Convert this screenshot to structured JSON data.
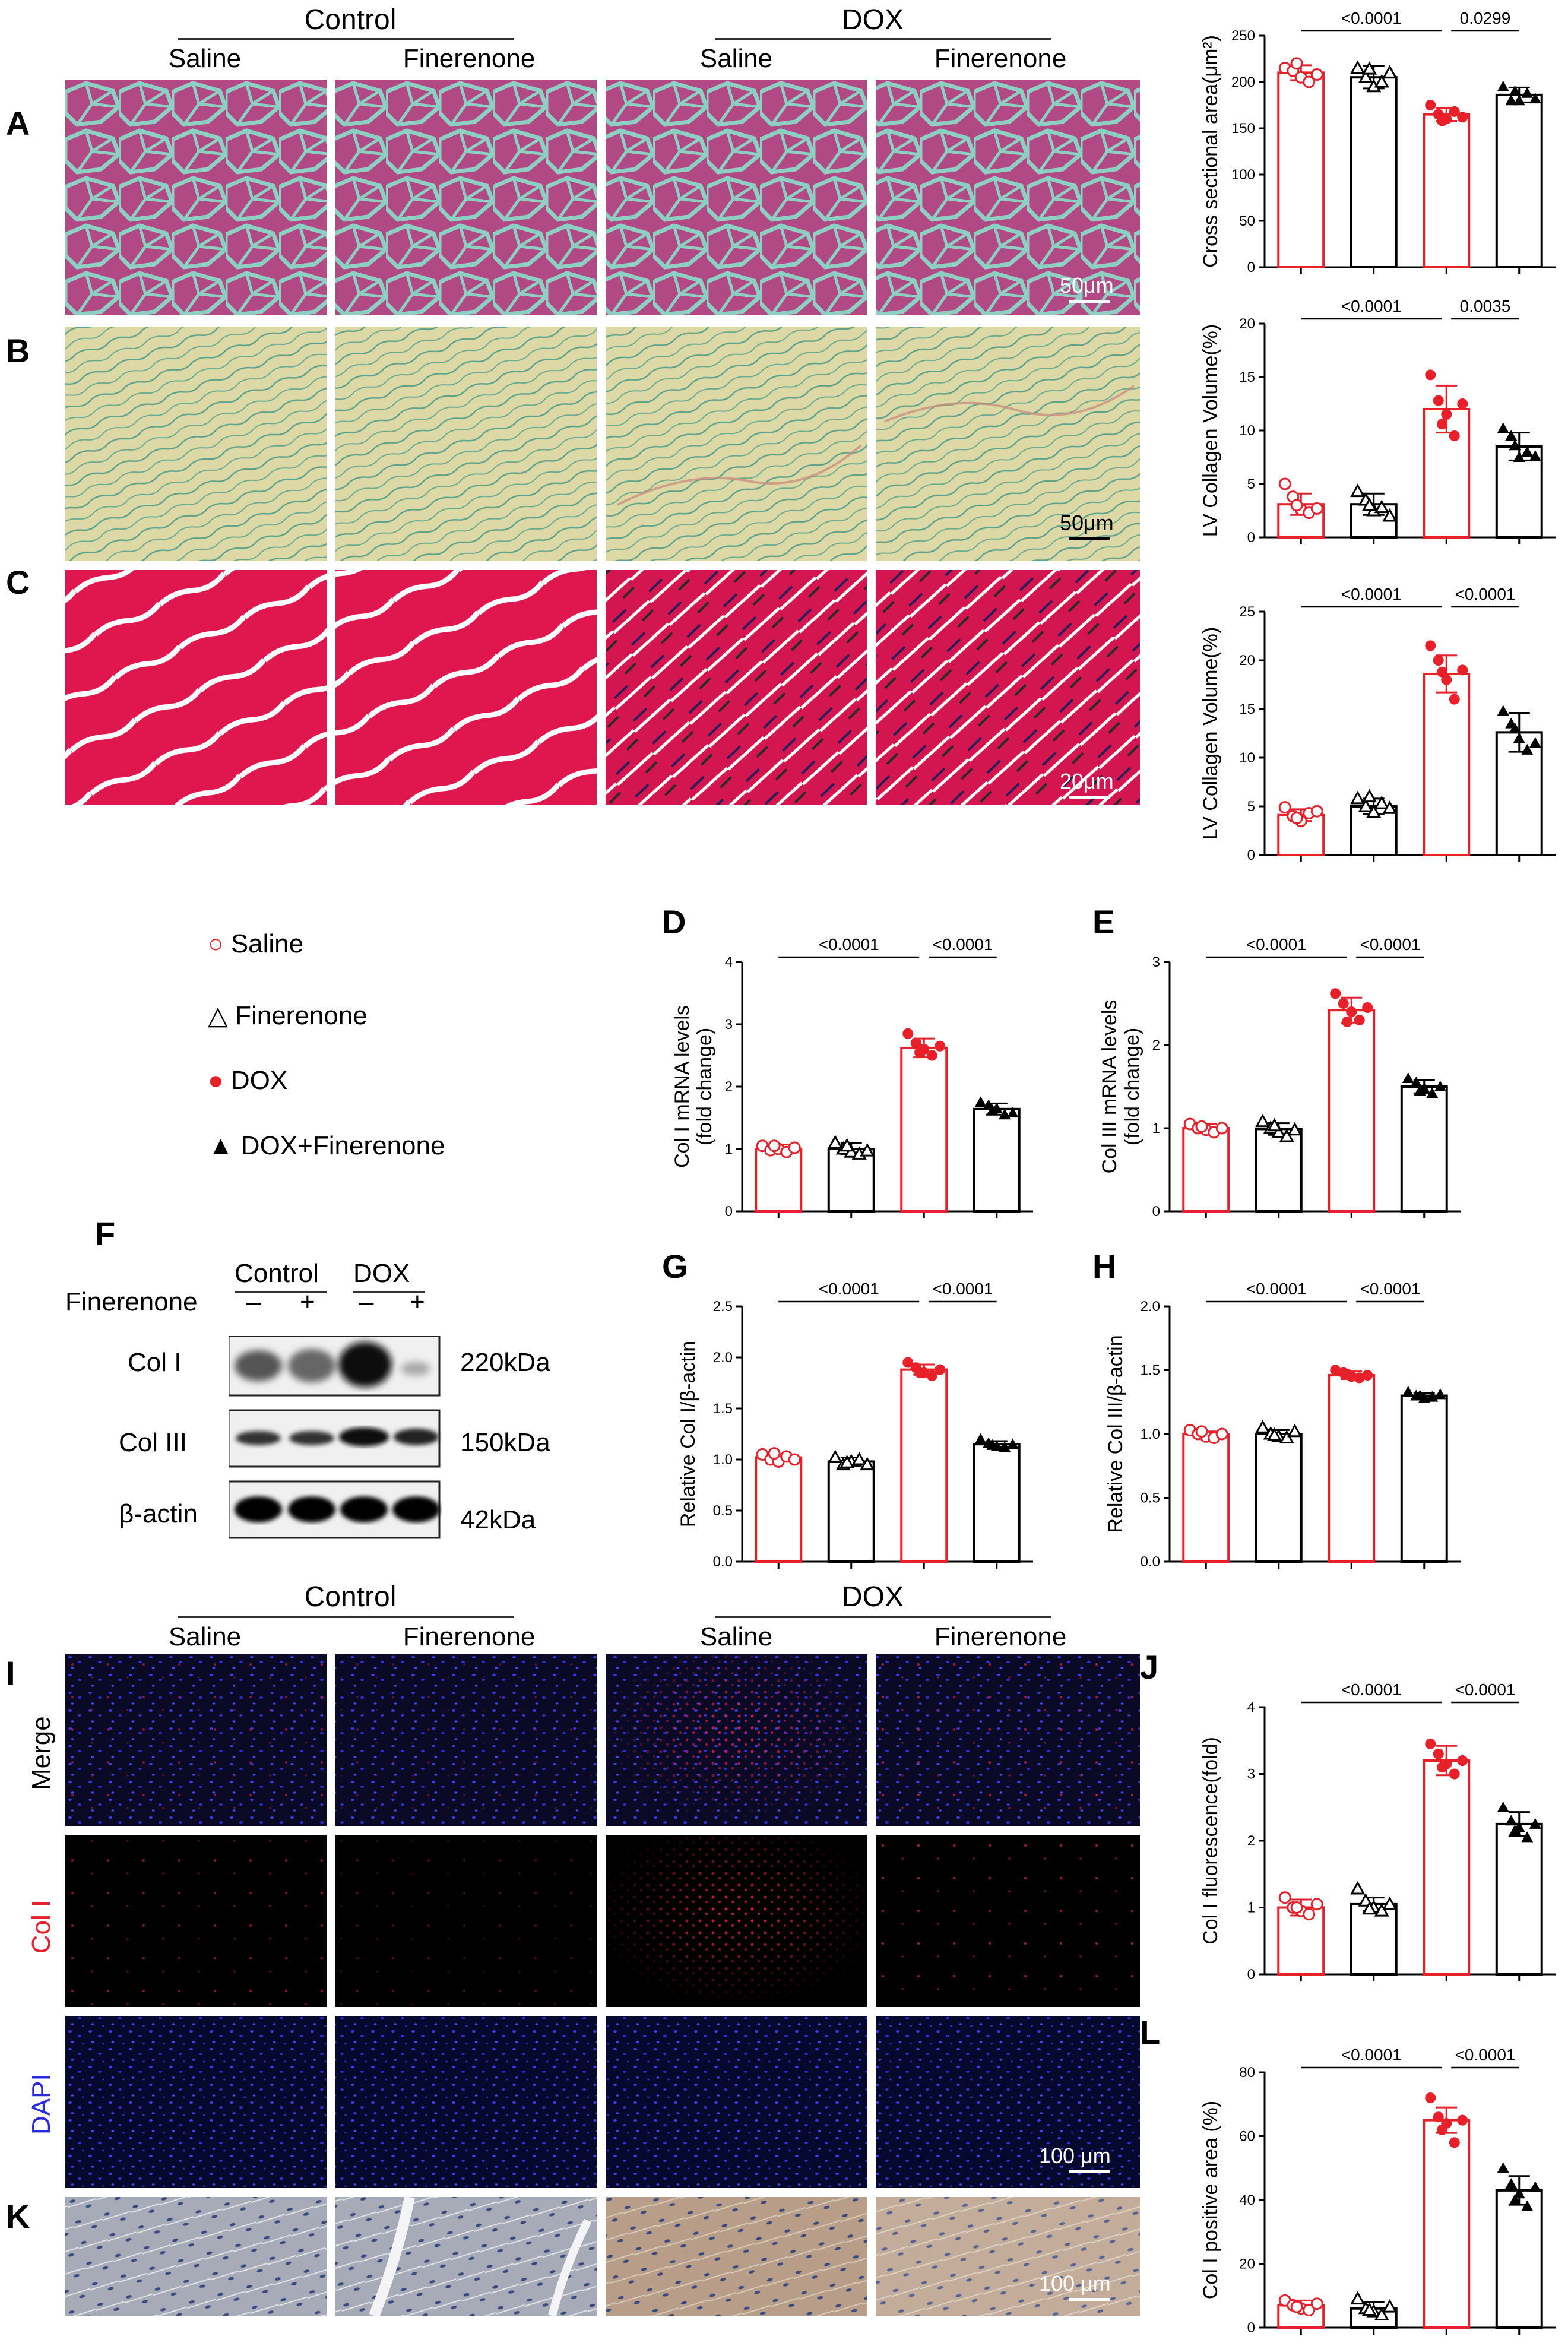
{
  "headers": {
    "control": "Control",
    "dox": "DOX",
    "saline": "Saline",
    "finerenone": "Finerenone"
  },
  "panels": {
    "A": "A",
    "B": "B",
    "C": "C",
    "D": "D",
    "E": "E",
    "F": "F",
    "G": "G",
    "H": "H",
    "I": "I",
    "J": "J",
    "K": "K",
    "L": "L"
  },
  "scalebars": {
    "A": "50μm",
    "B": "50μm",
    "C": "20μm",
    "IF": "100 μm",
    "K": "100 μm"
  },
  "legend": [
    {
      "marker": "○",
      "label": "Saline",
      "color": "#e8202a"
    },
    {
      "marker": "△",
      "label": "Finerenone",
      "color": "#000000"
    },
    {
      "marker": "●",
      "label": "DOX",
      "color": "#e8202a"
    },
    {
      "marker": "▲",
      "label": "DOX+Finerenone",
      "color": "#000000"
    }
  ],
  "western": {
    "finerenone_label": "Finerenone",
    "control": "Control",
    "dox": "DOX",
    "signs": [
      "–",
      "+",
      "–",
      "+"
    ],
    "rows": [
      {
        "name": "Col I",
        "size": "220kDa"
      },
      {
        "name": "Col III",
        "size": "150kDa"
      },
      {
        "name": "β-actin",
        "size": "42kDa"
      }
    ]
  },
  "if_rows": [
    "Merge",
    "Col I",
    "DAPI"
  ],
  "colors": {
    "red": "#e8202a",
    "black": "#000000",
    "merge_bg": "#0a0a26",
    "col_bg": "#000000",
    "dapi_bg": "#07082e",
    "he_pink": "#b04b86",
    "sr_bg": "#dcd9a6",
    "red_stain": "#e0164f",
    "ihc_bg": "#9fa5b1"
  },
  "chart_data": [
    {
      "panel": "A",
      "type": "bar",
      "ylabel": "Cross sectional area(μm²)",
      "ylim": [
        0,
        250
      ],
      "yticks": [
        0,
        50,
        100,
        150,
        200,
        250
      ],
      "values": [
        210,
        205,
        165,
        186
      ],
      "errors": [
        8,
        12,
        7,
        8
      ],
      "points": [
        [
          215,
          212,
          205,
          200,
          208,
          220
        ],
        [
          215,
          205,
          195,
          200,
          210,
          214
        ],
        [
          175,
          165,
          160,
          168,
          162,
          158
        ],
        [
          195,
          180,
          180,
          188,
          182,
          190
        ]
      ],
      "comparisons": [
        {
          "from": 0,
          "to": 2,
          "label": "<0.0001"
        },
        {
          "from": 2,
          "to": 3,
          "label": "0.0299"
        }
      ]
    },
    {
      "panel": "B",
      "type": "bar",
      "ylabel": "LV Collagen Volume(%)",
      "ylim": [
        0,
        20
      ],
      "yticks": [
        0,
        5,
        10,
        15,
        20
      ],
      "values": [
        3.1,
        3.1,
        12.0,
        8.5
      ],
      "errors": [
        1.0,
        1.0,
        2.2,
        1.3
      ],
      "points": [
        [
          5.0,
          3.8,
          2.6,
          2.3,
          2.7,
          3.0
        ],
        [
          4.3,
          3.5,
          2.5,
          2.8,
          2.0,
          3.0
        ],
        [
          15.2,
          12.8,
          11.5,
          9.5,
          12.5,
          10.6
        ],
        [
          10.2,
          9.5,
          7.5,
          8.0,
          7.6,
          8.6
        ]
      ],
      "comparisons": [
        {
          "from": 0,
          "to": 2,
          "label": "<0.0001"
        },
        {
          "from": 2,
          "to": 3,
          "label": "0.0035"
        }
      ]
    },
    {
      "panel": "C",
      "type": "bar",
      "ylabel": "LV Collagen Volume(%)",
      "ylim": [
        0,
        25
      ],
      "yticks": [
        0,
        5,
        10,
        15,
        20,
        25
      ],
      "values": [
        4.1,
        5.0,
        18.6,
        12.6
      ],
      "errors": [
        0.6,
        0.8,
        1.9,
        2.0
      ],
      "points": [
        [
          4.9,
          4.0,
          3.5,
          4.3,
          4.5,
          3.8
        ],
        [
          5.8,
          5.0,
          4.4,
          5.3,
          4.8,
          6.0
        ],
        [
          21.5,
          20.0,
          18.0,
          16.0,
          19.0,
          18.8
        ],
        [
          14.8,
          13.5,
          12.0,
          10.8,
          11.5,
          13.0
        ]
      ],
      "comparisons": [
        {
          "from": 0,
          "to": 2,
          "label": "<0.0001"
        },
        {
          "from": 2,
          "to": 3,
          "label": "<0.0001"
        }
      ]
    },
    {
      "panel": "D",
      "type": "bar",
      "ylabel": "Col I mRNA levels\n(fold change)",
      "ylim": [
        0,
        4
      ],
      "yticks": [
        0,
        1,
        2,
        3,
        4
      ],
      "values": [
        1.0,
        1.0,
        2.62,
        1.64
      ],
      "errors": [
        0.07,
        0.09,
        0.15,
        0.09
      ],
      "points": [
        [
          1.05,
          0.98,
          1.0,
          0.95,
          1.02,
          1.05
        ],
        [
          1.1,
          1.0,
          0.95,
          0.92,
          0.97,
          1.05
        ],
        [
          2.85,
          2.7,
          2.6,
          2.5,
          2.65,
          2.55
        ],
        [
          1.75,
          1.7,
          1.65,
          1.55,
          1.58,
          1.62
        ]
      ],
      "comparisons": [
        {
          "from": 0,
          "to": 2,
          "label": "<0.0001"
        },
        {
          "from": 2,
          "to": 3,
          "label": "<0.0001"
        }
      ]
    },
    {
      "panel": "E",
      "type": "bar",
      "ylabel": "Col III mRNA levels\n(fold change)",
      "ylim": [
        0,
        3
      ],
      "yticks": [
        0,
        1,
        2,
        3
      ],
      "values": [
        1.0,
        0.99,
        2.42,
        1.5
      ],
      "errors": [
        0.05,
        0.07,
        0.15,
        0.08
      ],
      "points": [
        [
          1.05,
          1.0,
          0.98,
          0.95,
          1.0,
          1.02
        ],
        [
          1.08,
          1.0,
          0.95,
          0.9,
          0.98,
          1.03
        ],
        [
          2.62,
          2.5,
          2.4,
          2.3,
          2.45,
          2.28
        ],
        [
          1.6,
          1.55,
          1.48,
          1.42,
          1.5,
          1.45
        ]
      ],
      "comparisons": [
        {
          "from": 0,
          "to": 2,
          "label": "<0.0001"
        },
        {
          "from": 2,
          "to": 3,
          "label": "<0.0001"
        }
      ]
    },
    {
      "panel": "G",
      "type": "bar",
      "ylabel": "Relative Col I/β-actin",
      "ylim": [
        0,
        2.5
      ],
      "yticks": [
        0.0,
        0.5,
        1.0,
        1.5,
        2.0,
        2.5
      ],
      "values": [
        1.02,
        0.98,
        1.88,
        1.15
      ],
      "errors": [
        0.03,
        0.04,
        0.05,
        0.03
      ],
      "points": [
        [
          1.05,
          1.0,
          0.98,
          1.03,
          1.0,
          1.06
        ],
        [
          1.02,
          0.95,
          0.98,
          1.0,
          0.95,
          0.97
        ],
        [
          1.95,
          1.9,
          1.85,
          1.82,
          1.88,
          1.85
        ],
        [
          1.2,
          1.16,
          1.13,
          1.12,
          1.15,
          1.14
        ]
      ],
      "comparisons": [
        {
          "from": 0,
          "to": 2,
          "label": "<0.0001"
        },
        {
          "from": 2,
          "to": 3,
          "label": "<0.0001"
        }
      ]
    },
    {
      "panel": "H",
      "type": "bar",
      "ylabel": "Relative Col III/β-actin",
      "ylim": [
        0,
        2.0
      ],
      "yticks": [
        0.0,
        0.5,
        1.0,
        1.5,
        2.0
      ],
      "values": [
        1.0,
        1.0,
        1.46,
        1.3
      ],
      "errors": [
        0.02,
        0.03,
        0.03,
        0.02
      ],
      "points": [
        [
          1.03,
          1.0,
          0.98,
          0.97,
          1.0,
          1.02
        ],
        [
          1.05,
          1.0,
          0.98,
          0.97,
          1.02,
          0.99
        ],
        [
          1.5,
          1.48,
          1.45,
          1.44,
          1.46,
          1.47
        ],
        [
          1.33,
          1.3,
          1.28,
          1.29,
          1.31,
          1.3
        ]
      ],
      "comparisons": [
        {
          "from": 0,
          "to": 2,
          "label": "<0.0001"
        },
        {
          "from": 2,
          "to": 3,
          "label": "<0.0001"
        }
      ]
    },
    {
      "panel": "J",
      "type": "bar",
      "ylabel": "Col I fluorescence(fold)",
      "ylim": [
        0,
        4
      ],
      "yticks": [
        0,
        1,
        2,
        3,
        4
      ],
      "values": [
        1.0,
        1.05,
        3.2,
        2.25
      ],
      "errors": [
        0.12,
        0.1,
        0.22,
        0.18
      ],
      "points": [
        [
          1.15,
          1.0,
          0.95,
          0.9,
          1.05,
          1.0
        ],
        [
          1.28,
          1.1,
          1.0,
          0.95,
          1.05,
          0.98
        ],
        [
          3.45,
          3.3,
          3.15,
          3.0,
          3.2,
          3.1
        ],
        [
          2.5,
          2.3,
          2.2,
          2.05,
          2.25,
          2.15
        ]
      ],
      "comparisons": [
        {
          "from": 0,
          "to": 2,
          "label": "<0.0001"
        },
        {
          "from": 2,
          "to": 3,
          "label": "<0.0001"
        }
      ]
    },
    {
      "panel": "L",
      "type": "bar",
      "ylabel": "Col I positive area (%)",
      "ylim": [
        0,
        80
      ],
      "yticks": [
        0,
        20,
        40,
        60,
        80
      ],
      "values": [
        7,
        6,
        65,
        43
      ],
      "errors": [
        1.5,
        2.0,
        4.0,
        4.5
      ],
      "points": [
        [
          8.5,
          7.0,
          6.0,
          5.5,
          7.5,
          6.5
        ],
        [
          9.0,
          6.0,
          5.0,
          4.0,
          6.5,
          5.5
        ],
        [
          72,
          66,
          64,
          58,
          65,
          62
        ],
        [
          50,
          45,
          42,
          38,
          44,
          40
        ]
      ],
      "comparisons": [
        {
          "from": 0,
          "to": 2,
          "label": "<0.0001"
        },
        {
          "from": 2,
          "to": 3,
          "label": "<0.0001"
        }
      ]
    }
  ]
}
